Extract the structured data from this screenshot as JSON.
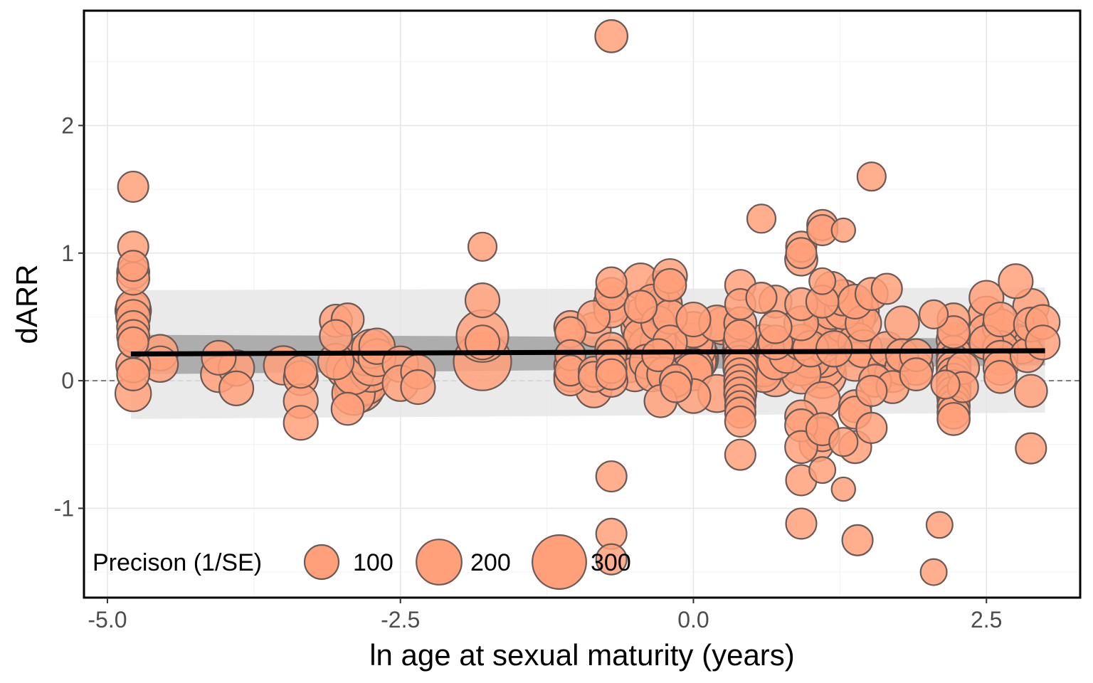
{
  "chart_data": {
    "type": "scatter",
    "title": "",
    "xlabel": "ln age at sexual maturity (years)",
    "ylabel": "dARR",
    "xlim": [
      -5.2,
      3.3
    ],
    "ylim": [
      -1.7,
      2.9
    ],
    "x_ticks": [
      -5.0,
      -2.5,
      0.0,
      2.5
    ],
    "x_tick_labels": [
      "-5.0",
      "-2.5",
      "0.0",
      "2.5"
    ],
    "y_ticks": [
      -1,
      0,
      1,
      2
    ],
    "y_tick_labels": [
      "-1",
      "0",
      "1",
      "2"
    ],
    "grid": true,
    "reference_line_y": 0,
    "regression": {
      "x": [
        -4.8,
        3.0
      ],
      "y": [
        0.21,
        0.235
      ],
      "ci_lower": [
        0.05,
        0.12
      ],
      "ci_upper": [
        0.36,
        0.33
      ],
      "pi_lower": [
        -0.3,
        -0.25
      ],
      "pi_upper": [
        0.71,
        0.73
      ]
    },
    "legend": {
      "title": "Precison (1/SE)",
      "position": "bottom-left",
      "sizes": [
        100,
        200,
        300
      ],
      "labels": [
        "100",
        "200",
        "300"
      ]
    },
    "colors": {
      "point_fill": "#FFA07A",
      "point_stroke": "#6b5a55",
      "regression_line": "#000000",
      "ci_band": "#a6a6a6",
      "pi_band": "#e6e6e6"
    },
    "points": [
      {
        "x": -4.78,
        "y": 1.52,
        "w": 30
      },
      {
        "x": -4.78,
        "y": 1.05,
        "w": 30
      },
      {
        "x": -4.78,
        "y": 0.9,
        "w": 30
      },
      {
        "x": -4.78,
        "y": 0.85,
        "w": 35
      },
      {
        "x": -4.78,
        "y": 0.8,
        "w": 35
      },
      {
        "x": -4.78,
        "y": 0.58,
        "w": 40
      },
      {
        "x": -4.78,
        "y": 0.55,
        "w": 45
      },
      {
        "x": -4.78,
        "y": 0.5,
        "w": 40
      },
      {
        "x": -4.78,
        "y": 0.42,
        "w": 35
      },
      {
        "x": -4.78,
        "y": 0.35,
        "w": 35
      },
      {
        "x": -4.78,
        "y": 0.3,
        "w": 30
      },
      {
        "x": -4.78,
        "y": 0.12,
        "w": 40
      },
      {
        "x": -4.78,
        "y": 0.05,
        "w": 35
      },
      {
        "x": -4.78,
        "y": -0.1,
        "w": 45
      },
      {
        "x": -4.55,
        "y": 0.22,
        "w": 45
      },
      {
        "x": -4.55,
        "y": 0.13,
        "w": 45
      },
      {
        "x": -4.05,
        "y": 0.18,
        "w": 40
      },
      {
        "x": -4.05,
        "y": 0.05,
        "w": 45
      },
      {
        "x": -3.9,
        "y": 0.1,
        "w": 45
      },
      {
        "x": -3.9,
        "y": -0.06,
        "w": 40
      },
      {
        "x": -3.5,
        "y": 0.12,
        "w": 55
      },
      {
        "x": -3.35,
        "y": 0.07,
        "w": 35
      },
      {
        "x": -3.35,
        "y": 0.02,
        "w": 40
      },
      {
        "x": -3.35,
        "y": -0.16,
        "w": 40
      },
      {
        "x": -3.35,
        "y": -0.33,
        "w": 40
      },
      {
        "x": -3.05,
        "y": 0.47,
        "w": 35
      },
      {
        "x": -2.95,
        "y": 0.48,
        "w": 35
      },
      {
        "x": -3.05,
        "y": 0.35,
        "w": 35
      },
      {
        "x": -3.05,
        "y": 0.15,
        "w": 45
      },
      {
        "x": -2.95,
        "y": 0.1,
        "w": 70
      },
      {
        "x": -2.9,
        "y": 0.05,
        "w": 60
      },
      {
        "x": -2.85,
        "y": 0.02,
        "w": 80
      },
      {
        "x": -2.85,
        "y": -0.02,
        "w": 90
      },
      {
        "x": -2.85,
        "y": -0.05,
        "w": 100
      },
      {
        "x": -2.9,
        "y": -0.1,
        "w": 70
      },
      {
        "x": -2.95,
        "y": -0.22,
        "w": 35
      },
      {
        "x": -2.8,
        "y": 0.2,
        "w": 60
      },
      {
        "x": -2.75,
        "y": 0.25,
        "w": 55
      },
      {
        "x": -2.75,
        "y": 0.12,
        "w": 60
      },
      {
        "x": -2.75,
        "y": 0.08,
        "w": 70
      },
      {
        "x": -2.7,
        "y": 0.27,
        "w": 45
      },
      {
        "x": -2.7,
        "y": 0.18,
        "w": 50
      },
      {
        "x": -2.8,
        "y": -0.01,
        "w": 80
      },
      {
        "x": -2.5,
        "y": 0.13,
        "w": 45
      },
      {
        "x": -2.5,
        "y": -0.02,
        "w": 45
      },
      {
        "x": -2.35,
        "y": 0.07,
        "w": 40
      },
      {
        "x": -2.35,
        "y": -0.05,
        "w": 40
      },
      {
        "x": -1.8,
        "y": 1.05,
        "w": 25
      },
      {
        "x": -1.8,
        "y": 0.63,
        "w": 40
      },
      {
        "x": -1.8,
        "y": 0.35,
        "w": 110
      },
      {
        "x": -1.8,
        "y": 0.3,
        "w": 40
      },
      {
        "x": -1.8,
        "y": 0.15,
        "w": 140
      },
      {
        "x": -1.05,
        "y": 0.42,
        "w": 35
      },
      {
        "x": -1.05,
        "y": 0.38,
        "w": 30
      },
      {
        "x": -1.05,
        "y": 0.2,
        "w": 30
      },
      {
        "x": -1.05,
        "y": 0.12,
        "w": 35
      },
      {
        "x": -1.05,
        "y": 0.08,
        "w": 30
      },
      {
        "x": -1.05,
        "y": 0.04,
        "w": 35
      },
      {
        "x": -1.05,
        "y": 0.01,
        "w": 35
      },
      {
        "x": -0.85,
        "y": 0.5,
        "w": 35
      },
      {
        "x": -0.85,
        "y": 0.4,
        "w": 40
      },
      {
        "x": -0.85,
        "y": 0.07,
        "w": 30
      },
      {
        "x": -0.85,
        "y": 0.03,
        "w": 30
      },
      {
        "x": -0.85,
        "y": -0.07,
        "w": 45
      },
      {
        "x": -0.7,
        "y": 2.7,
        "w": 35
      },
      {
        "x": -0.7,
        "y": 0.77,
        "w": 30
      },
      {
        "x": -0.7,
        "y": 0.68,
        "w": 35
      },
      {
        "x": -0.7,
        "y": 0.6,
        "w": 45
      },
      {
        "x": -0.7,
        "y": 0.55,
        "w": 40
      },
      {
        "x": -0.7,
        "y": 0.25,
        "w": 35
      },
      {
        "x": -0.7,
        "y": 0.2,
        "w": 30
      },
      {
        "x": -0.7,
        "y": 0.1,
        "w": 30
      },
      {
        "x": -0.7,
        "y": 0.05,
        "w": 30
      },
      {
        "x": -0.7,
        "y": 0.0,
        "w": 35
      },
      {
        "x": -0.7,
        "y": -0.75,
        "w": 30
      },
      {
        "x": -0.7,
        "y": -1.2,
        "w": 30
      },
      {
        "x": -0.7,
        "y": -1.4,
        "w": 30
      },
      {
        "x": -0.55,
        "y": 0.12,
        "w": 40
      },
      {
        "x": -0.5,
        "y": 0.05,
        "w": 40
      },
      {
        "x": -0.45,
        "y": 0.78,
        "w": 45
      },
      {
        "x": -0.45,
        "y": 0.58,
        "w": 35
      },
      {
        "x": -0.45,
        "y": 0.5,
        "w": 50
      },
      {
        "x": -0.45,
        "y": 0.42,
        "w": 55
      },
      {
        "x": -0.45,
        "y": 0.35,
        "w": 40
      },
      {
        "x": -0.4,
        "y": 0.28,
        "w": 45
      },
      {
        "x": -0.4,
        "y": 0.15,
        "w": 40
      },
      {
        "x": -0.35,
        "y": 0.62,
        "w": 40
      },
      {
        "x": -0.35,
        "y": 0.05,
        "w": 40
      },
      {
        "x": -0.3,
        "y": 0.6,
        "w": 45
      },
      {
        "x": -0.3,
        "y": 0.45,
        "w": 40
      },
      {
        "x": -0.3,
        "y": 0.3,
        "w": 45
      },
      {
        "x": -0.3,
        "y": 0.2,
        "w": 35
      },
      {
        "x": -0.3,
        "y": 0.1,
        "w": 45
      },
      {
        "x": -0.25,
        "y": 0.72,
        "w": 50
      },
      {
        "x": -0.25,
        "y": 0.6,
        "w": 45
      },
      {
        "x": -0.2,
        "y": 0.82,
        "w": 40
      },
      {
        "x": -0.2,
        "y": 0.75,
        "w": 35
      },
      {
        "x": -0.2,
        "y": 0.5,
        "w": 40
      },
      {
        "x": -0.2,
        "y": 0.3,
        "w": 40
      },
      {
        "x": -0.25,
        "y": 0.05,
        "w": 40
      },
      {
        "x": -0.15,
        "y": 0.0,
        "w": 35
      },
      {
        "x": -0.15,
        "y": -0.05,
        "w": 30
      },
      {
        "x": -0.28,
        "y": -0.16,
        "w": 35
      },
      {
        "x": 0.0,
        "y": 0.48,
        "w": 40
      },
      {
        "x": 0.0,
        "y": 0.4,
        "w": 45
      },
      {
        "x": 0.0,
        "y": 0.3,
        "w": 55
      },
      {
        "x": 0.0,
        "y": 0.25,
        "w": 75
      },
      {
        "x": 0.0,
        "y": 0.2,
        "w": 90
      },
      {
        "x": 0.0,
        "y": 0.18,
        "w": 100
      },
      {
        "x": 0.0,
        "y": 0.15,
        "w": 80
      },
      {
        "x": 0.0,
        "y": 0.1,
        "w": 55
      },
      {
        "x": 0.0,
        "y": 0.07,
        "w": 50
      },
      {
        "x": 0.0,
        "y": -0.12,
        "w": 40
      },
      {
        "x": 0.2,
        "y": 0.45,
        "w": 45
      },
      {
        "x": 0.25,
        "y": 0.43,
        "w": 50
      },
      {
        "x": 0.2,
        "y": -0.1,
        "w": 50
      },
      {
        "x": 0.4,
        "y": 0.75,
        "w": 30
      },
      {
        "x": 0.4,
        "y": 0.6,
        "w": 30
      },
      {
        "x": 0.4,
        "y": 0.45,
        "w": 35
      },
      {
        "x": 0.4,
        "y": 0.35,
        "w": 35
      },
      {
        "x": 0.4,
        "y": 0.3,
        "w": 40
      },
      {
        "x": 0.4,
        "y": 0.22,
        "w": 45
      },
      {
        "x": 0.4,
        "y": 0.18,
        "w": 40
      },
      {
        "x": 0.4,
        "y": 0.14,
        "w": 40
      },
      {
        "x": 0.4,
        "y": 0.1,
        "w": 40
      },
      {
        "x": 0.4,
        "y": 0.05,
        "w": 35
      },
      {
        "x": 0.4,
        "y": 0.0,
        "w": 35
      },
      {
        "x": 0.4,
        "y": -0.05,
        "w": 35
      },
      {
        "x": 0.4,
        "y": -0.1,
        "w": 35
      },
      {
        "x": 0.4,
        "y": -0.15,
        "w": 30
      },
      {
        "x": 0.4,
        "y": -0.2,
        "w": 30
      },
      {
        "x": 0.4,
        "y": -0.25,
        "w": 30
      },
      {
        "x": 0.4,
        "y": -0.32,
        "w": 30
      },
      {
        "x": 0.4,
        "y": -0.58,
        "w": 30
      },
      {
        "x": 0.58,
        "y": 1.27,
        "w": 25
      },
      {
        "x": 0.58,
        "y": 0.65,
        "w": 30
      },
      {
        "x": 0.6,
        "y": 0.3,
        "w": 45
      },
      {
        "x": 0.6,
        "y": 0.1,
        "w": 50
      },
      {
        "x": 0.6,
        "y": 0.05,
        "w": 45
      },
      {
        "x": 0.7,
        "y": 0.62,
        "w": 35
      },
      {
        "x": 0.7,
        "y": 0.42,
        "w": 35
      },
      {
        "x": 0.7,
        "y": 0.3,
        "w": 40
      },
      {
        "x": 0.7,
        "y": 0.25,
        "w": 55
      },
      {
        "x": 0.7,
        "y": 0.15,
        "w": 45
      },
      {
        "x": 0.7,
        "y": 0.04,
        "w": 65
      },
      {
        "x": 0.8,
        "y": 0.2,
        "w": 45
      },
      {
        "x": 0.92,
        "y": 1.05,
        "w": 30
      },
      {
        "x": 0.92,
        "y": 1.0,
        "w": 30
      },
      {
        "x": 0.92,
        "y": 0.95,
        "w": 35
      },
      {
        "x": 0.92,
        "y": 0.6,
        "w": 35
      },
      {
        "x": 0.92,
        "y": 0.45,
        "w": 40
      },
      {
        "x": 0.92,
        "y": 0.3,
        "w": 45
      },
      {
        "x": 0.92,
        "y": 0.12,
        "w": 60
      },
      {
        "x": 0.92,
        "y": 0.05,
        "w": 55
      },
      {
        "x": 0.92,
        "y": -0.28,
        "w": 35
      },
      {
        "x": 0.92,
        "y": -0.35,
        "w": 35
      },
      {
        "x": 0.92,
        "y": -0.52,
        "w": 35
      },
      {
        "x": 0.92,
        "y": -0.78,
        "w": 30
      },
      {
        "x": 0.92,
        "y": -1.12,
        "w": 30
      },
      {
        "x": 1.0,
        "y": 0.25,
        "w": 45
      },
      {
        "x": 1.0,
        "y": 0.18,
        "w": 60
      },
      {
        "x": 1.05,
        "y": -0.5,
        "w": 40
      },
      {
        "x": 1.1,
        "y": 1.22,
        "w": 30
      },
      {
        "x": 1.1,
        "y": 1.18,
        "w": 30
      },
      {
        "x": 1.1,
        "y": 0.78,
        "w": 20
      },
      {
        "x": 1.1,
        "y": 0.62,
        "w": 35
      },
      {
        "x": 1.1,
        "y": 0.5,
        "w": 50
      },
      {
        "x": 1.1,
        "y": 0.4,
        "w": 55
      },
      {
        "x": 1.1,
        "y": 0.3,
        "w": 60
      },
      {
        "x": 1.1,
        "y": 0.2,
        "w": 75
      },
      {
        "x": 1.1,
        "y": 0.12,
        "w": 80
      },
      {
        "x": 1.1,
        "y": 0.05,
        "w": 90
      },
      {
        "x": 1.1,
        "y": -0.15,
        "w": 45
      },
      {
        "x": 1.1,
        "y": -0.38,
        "w": 35
      },
      {
        "x": 1.1,
        "y": -0.42,
        "w": 40
      },
      {
        "x": 1.1,
        "y": -0.7,
        "w": 20
      },
      {
        "x": 1.18,
        "y": 0.72,
        "w": 40
      },
      {
        "x": 1.18,
        "y": 0.55,
        "w": 50
      },
      {
        "x": 1.18,
        "y": 0.35,
        "w": 55
      },
      {
        "x": 1.2,
        "y": 0.25,
        "w": 45
      },
      {
        "x": 1.28,
        "y": 1.18,
        "w": 15
      },
      {
        "x": 1.28,
        "y": 0.65,
        "w": 45
      },
      {
        "x": 1.28,
        "y": 0.55,
        "w": 50
      },
      {
        "x": 1.28,
        "y": 0.45,
        "w": 55
      },
      {
        "x": 1.28,
        "y": -0.48,
        "w": 25
      },
      {
        "x": 1.28,
        "y": -0.85,
        "w": 15
      },
      {
        "x": 1.38,
        "y": 0.62,
        "w": 40
      },
      {
        "x": 1.38,
        "y": 0.5,
        "w": 60
      },
      {
        "x": 1.4,
        "y": 0.55,
        "w": 70
      },
      {
        "x": 1.4,
        "y": 0.3,
        "w": 55
      },
      {
        "x": 1.38,
        "y": 0.15,
        "w": 55
      },
      {
        "x": 1.38,
        "y": -0.2,
        "w": 35
      },
      {
        "x": 1.38,
        "y": -0.25,
        "w": 35
      },
      {
        "x": 1.38,
        "y": -0.52,
        "w": 35
      },
      {
        "x": 1.4,
        "y": -1.25,
        "w": 30
      },
      {
        "x": 1.45,
        "y": 0.45,
        "w": 45
      },
      {
        "x": 1.45,
        "y": 0.25,
        "w": 50
      },
      {
        "x": 1.52,
        "y": 1.6,
        "w": 25
      },
      {
        "x": 1.52,
        "y": 0.68,
        "w": 35
      },
      {
        "x": 1.52,
        "y": -0.08,
        "w": 30
      },
      {
        "x": 1.52,
        "y": -0.37,
        "w": 30
      },
      {
        "x": 1.55,
        "y": 0.0,
        "w": 35
      },
      {
        "x": 1.65,
        "y": 0.72,
        "w": 30
      },
      {
        "x": 1.65,
        "y": 0.25,
        "w": 40
      },
      {
        "x": 1.65,
        "y": 0.1,
        "w": 50
      },
      {
        "x": 1.7,
        "y": 0.05,
        "w": 45
      },
      {
        "x": 1.7,
        "y": -0.05,
        "w": 35
      },
      {
        "x": 1.78,
        "y": 0.45,
        "w": 40
      },
      {
        "x": 1.78,
        "y": 0.2,
        "w": 35
      },
      {
        "x": 1.78,
        "y": 0.1,
        "w": 40
      },
      {
        "x": 1.9,
        "y": 0.2,
        "w": 35
      },
      {
        "x": 1.9,
        "y": 0.1,
        "w": 40
      },
      {
        "x": 1.9,
        "y": 0.05,
        "w": 35
      },
      {
        "x": 2.05,
        "y": 0.52,
        "w": 25
      },
      {
        "x": 2.05,
        "y": -1.5,
        "w": 20
      },
      {
        "x": 2.1,
        "y": -1.13,
        "w": 20
      },
      {
        "x": 2.15,
        "y": -0.03,
        "w": 25
      },
      {
        "x": 2.22,
        "y": 0.48,
        "w": 35
      },
      {
        "x": 2.22,
        "y": 0.38,
        "w": 35
      },
      {
        "x": 2.22,
        "y": 0.32,
        "w": 40
      },
      {
        "x": 2.22,
        "y": 0.22,
        "w": 40
      },
      {
        "x": 2.22,
        "y": 0.15,
        "w": 40
      },
      {
        "x": 2.22,
        "y": 0.1,
        "w": 40
      },
      {
        "x": 2.22,
        "y": 0.05,
        "w": 40
      },
      {
        "x": 2.22,
        "y": 0.0,
        "w": 40
      },
      {
        "x": 2.22,
        "y": -0.05,
        "w": 40
      },
      {
        "x": 2.22,
        "y": -0.1,
        "w": 40
      },
      {
        "x": 2.22,
        "y": -0.15,
        "w": 35
      },
      {
        "x": 2.22,
        "y": -0.2,
        "w": 35
      },
      {
        "x": 2.22,
        "y": -0.25,
        "w": 35
      },
      {
        "x": 2.22,
        "y": -0.3,
        "w": 35
      },
      {
        "x": 2.3,
        "y": 0.1,
        "w": 35
      },
      {
        "x": 2.3,
        "y": -0.05,
        "w": 30
      },
      {
        "x": 2.5,
        "y": 0.65,
        "w": 40
      },
      {
        "x": 2.5,
        "y": 0.52,
        "w": 45
      },
      {
        "x": 2.5,
        "y": 0.38,
        "w": 45
      },
      {
        "x": 2.5,
        "y": 0.3,
        "w": 40
      },
      {
        "x": 2.62,
        "y": 0.48,
        "w": 40
      },
      {
        "x": 2.62,
        "y": 0.42,
        "w": 45
      },
      {
        "x": 2.62,
        "y": 0.35,
        "w": 50
      },
      {
        "x": 2.62,
        "y": 0.3,
        "w": 55
      },
      {
        "x": 2.62,
        "y": 0.25,
        "w": 45
      },
      {
        "x": 2.62,
        "y": 0.18,
        "w": 40
      },
      {
        "x": 2.62,
        "y": 0.1,
        "w": 40
      },
      {
        "x": 2.62,
        "y": 0.03,
        "w": 35
      },
      {
        "x": 2.75,
        "y": 0.78,
        "w": 40
      },
      {
        "x": 2.75,
        "y": 0.3,
        "w": 50
      },
      {
        "x": 2.8,
        "y": 0.28,
        "w": 50
      },
      {
        "x": 2.85,
        "y": 0.2,
        "w": 40
      },
      {
        "x": 2.88,
        "y": 0.58,
        "w": 45
      },
      {
        "x": 2.88,
        "y": 0.44,
        "w": 40
      },
      {
        "x": 2.88,
        "y": -0.08,
        "w": 35
      },
      {
        "x": 2.88,
        "y": -0.53,
        "w": 30
      },
      {
        "x": 2.98,
        "y": 0.46,
        "w": 40
      },
      {
        "x": 2.98,
        "y": 0.3,
        "w": 40
      }
    ]
  }
}
